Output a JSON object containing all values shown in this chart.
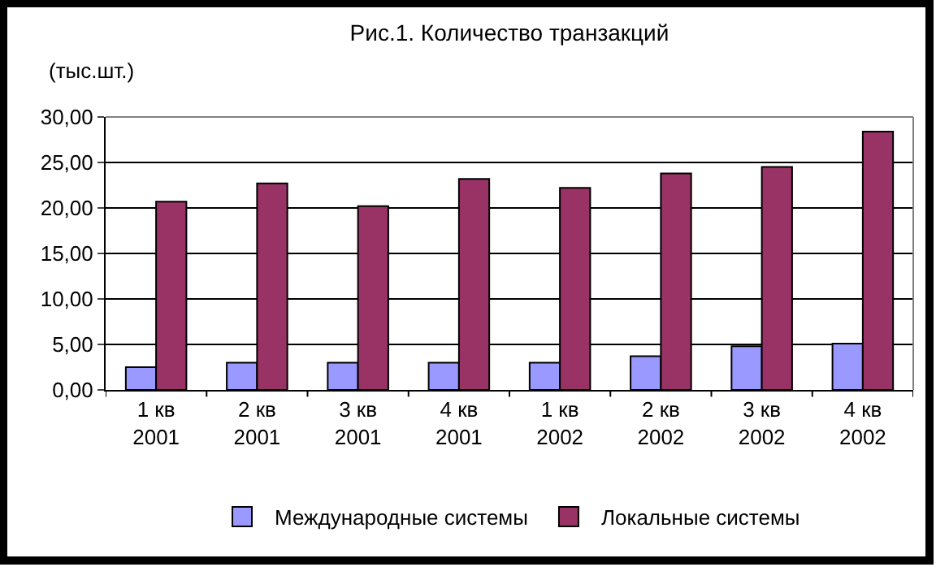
{
  "chart_data": {
    "type": "bar",
    "title": "Рис.1. Количество транзакций",
    "ylabel": "(тыс.шт.)",
    "categories": [
      "1 кв\n2001",
      "2 кв\n2001",
      "3 кв\n2001",
      "4 кв\n2001",
      "1 кв\n2002",
      "2 кв\n2002",
      "3 кв\n2002",
      "4 кв\n2002"
    ],
    "series": [
      {
        "name": "Международные системы",
        "color": "#9999ff",
        "values": [
          2.5,
          3.0,
          3.0,
          3.0,
          3.0,
          3.7,
          4.8,
          5.1
        ]
      },
      {
        "name": "Локальные системы",
        "color": "#993366",
        "values": [
          20.7,
          22.7,
          20.2,
          23.2,
          22.2,
          23.8,
          24.5,
          28.4
        ]
      }
    ],
    "ylim": [
      0,
      30
    ],
    "yticks": [
      {
        "value": 0,
        "label": "0,00"
      },
      {
        "value": 5,
        "label": "5,00"
      },
      {
        "value": 10,
        "label": "10,00"
      },
      {
        "value": 15,
        "label": "15,00"
      },
      {
        "value": 20,
        "label": "20,00"
      },
      {
        "value": 25,
        "label": "25,00"
      },
      {
        "value": 30,
        "label": "30,00"
      }
    ],
    "grid": "y",
    "legend": "bottom"
  }
}
